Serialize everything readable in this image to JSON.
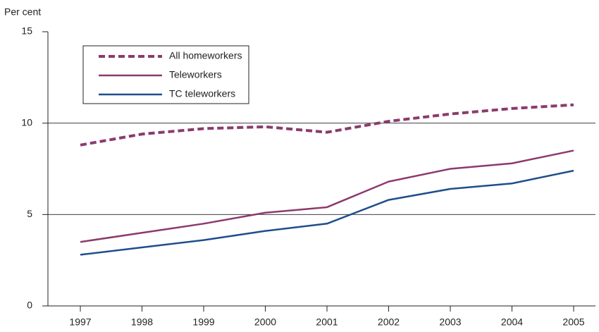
{
  "chart_data": {
    "type": "line",
    "y_label": "Per cent",
    "categories": [
      "1997",
      "1998",
      "1999",
      "2000",
      "2001",
      "2002",
      "2003",
      "2004",
      "2005"
    ],
    "series": [
      {
        "name": "All homeworkers",
        "color": "#8b3a6e",
        "style": "dashed",
        "values": [
          8.8,
          9.4,
          9.7,
          9.8,
          9.5,
          10.1,
          10.5,
          10.8,
          11.0
        ]
      },
      {
        "name": "Teleworkers",
        "color": "#8b3a6e",
        "style": "solid",
        "values": [
          3.5,
          4.0,
          4.5,
          5.1,
          5.4,
          6.8,
          7.5,
          7.8,
          8.5
        ]
      },
      {
        "name": "TC teleworkers",
        "color": "#1f4e8c",
        "style": "solid",
        "values": [
          2.8,
          3.2,
          3.6,
          4.1,
          4.5,
          5.8,
          6.4,
          6.7,
          7.4
        ]
      }
    ],
    "ylim": [
      0,
      15
    ],
    "yticks": [
      0,
      5,
      10,
      15
    ],
    "grid": true,
    "legend": "top-left"
  }
}
